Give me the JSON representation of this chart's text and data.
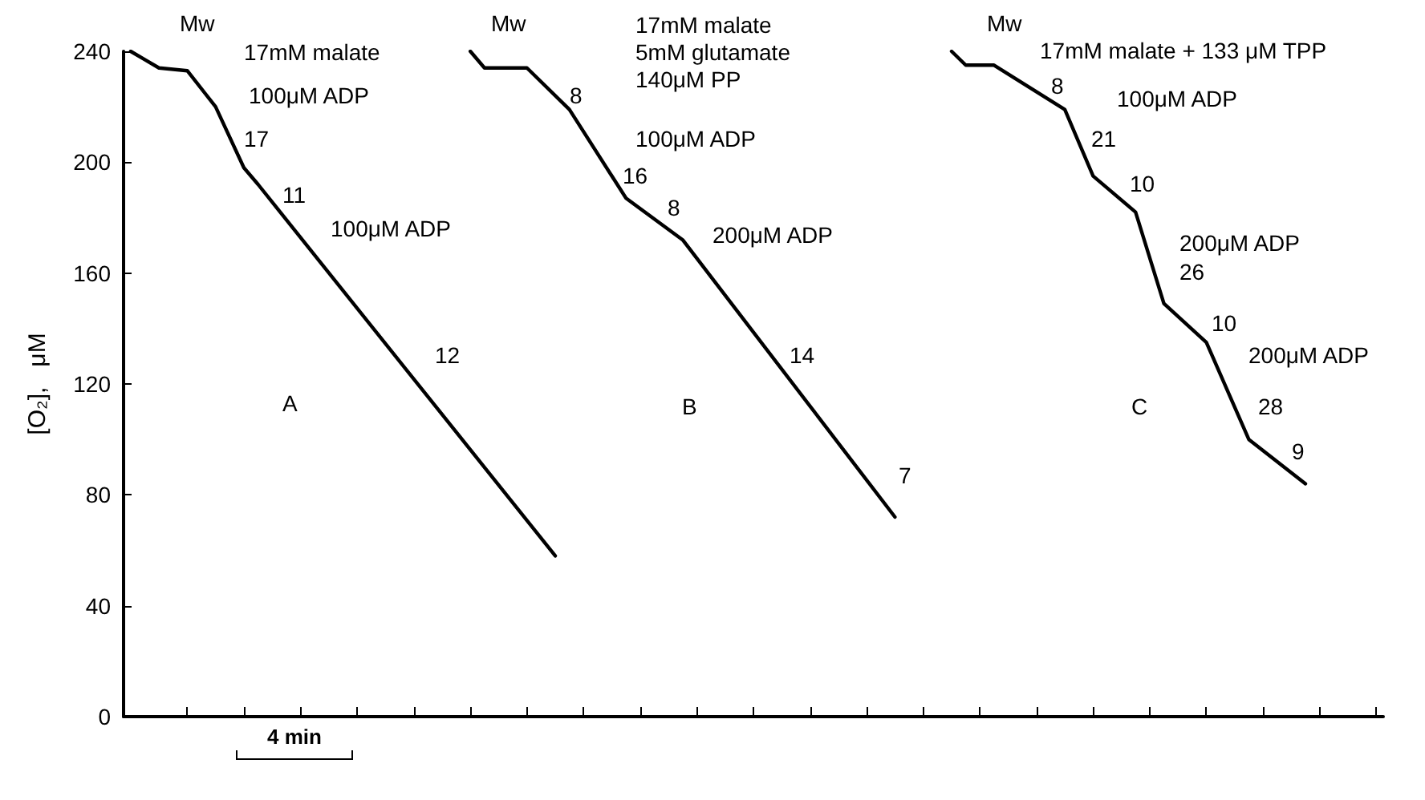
{
  "chart_data": {
    "type": "line",
    "ylabel": "[O₂],   μM",
    "categories": [
      null,
      null,
      null,
      null,
      null,
      null,
      null,
      null,
      null,
      null,
      null,
      null,
      null,
      null,
      null,
      null,
      null,
      null,
      null,
      null,
      null,
      null,
      null,
      null,
      null,
      null,
      null,
      null,
      null,
      null,
      null,
      null,
      null,
      null,
      null,
      null,
      null,
      null,
      null,
      null,
      null,
      null,
      null,
      null,
      null,
      null,
      null,
      null,
      null,
      null,
      null,
      null,
      null,
      null,
      null,
      null,
      null,
      null,
      null,
      null,
      null,
      null,
      null,
      null,
      null,
      null,
      null,
      null,
      null,
      null,
      null,
      null,
      null,
      null,
      null,
      null,
      null,
      null,
      null,
      null,
      null,
      null,
      null,
      null,
      null,
      null,
      null,
      null,
      null
    ],
    "ylim": [
      0,
      240
    ],
    "yticks": [
      0,
      40,
      80,
      120,
      160,
      200,
      240
    ],
    "tick_labels": "y",
    "grid": false,
    "line_style": "solid",
    "series": [
      {
        "color": "#000000",
        "values": [
          240,
          237,
          234,
          null,
          233,
          null,
          220,
          null,
          198,
          192,
          null,
          null,
          null,
          null,
          null,
          null,
          null,
          null,
          null,
          null,
          null,
          null,
          null,
          null,
          null,
          null,
          null,
          null,
          null,
          null,
          58,
          null,
          null,
          null,
          null,
          null,
          null,
          null,
          null,
          null,
          null,
          null,
          null,
          null,
          null,
          null,
          null,
          null,
          null,
          null,
          null,
          null,
          null,
          null,
          null,
          null,
          null,
          null,
          null,
          null,
          null,
          null,
          null,
          null,
          null,
          null,
          null,
          null,
          null,
          null,
          null,
          null,
          null,
          null,
          null,
          null,
          null,
          null,
          null,
          null,
          null,
          null,
          null,
          null,
          null,
          null,
          null,
          null,
          null
        ]
      },
      {
        "color": "#000000",
        "values": [
          null,
          null,
          null,
          null,
          null,
          null,
          null,
          null,
          null,
          null,
          null,
          null,
          null,
          null,
          null,
          null,
          null,
          null,
          null,
          null,
          null,
          null,
          null,
          null,
          240,
          234,
          null,
          null,
          234,
          null,
          null,
          219,
          null,
          null,
          null,
          187,
          null,
          null,
          null,
          172,
          null,
          null,
          null,
          null,
          null,
          null,
          null,
          null,
          null,
          null,
          null,
          92,
          null,
          null,
          72,
          null,
          null,
          null,
          null,
          null,
          null,
          null,
          null,
          null,
          null,
          null,
          null,
          null,
          null,
          null,
          null,
          null,
          null,
          null,
          null,
          null,
          null,
          null,
          null,
          null,
          null,
          null,
          null,
          null,
          null,
          null,
          null,
          null,
          null
        ]
      },
      {
        "color": "#000000",
        "values": [
          null,
          null,
          null,
          null,
          null,
          null,
          null,
          null,
          null,
          null,
          null,
          null,
          null,
          null,
          null,
          null,
          null,
          null,
          null,
          null,
          null,
          null,
          null,
          null,
          null,
          null,
          null,
          null,
          null,
          null,
          null,
          null,
          null,
          null,
          null,
          null,
          null,
          null,
          null,
          null,
          null,
          null,
          null,
          null,
          null,
          null,
          null,
          null,
          null,
          null,
          null,
          null,
          null,
          null,
          null,
          null,
          null,
          null,
          240,
          235,
          null,
          235,
          null,
          null,
          null,
          null,
          219,
          null,
          195,
          null,
          null,
          182,
          null,
          149,
          null,
          null,
          135,
          null,
          null,
          100,
          null,
          null,
          null,
          84,
          null,
          null,
          null,
          null,
          null
        ]
      }
    ],
    "annotations": [
      "Mw",
      "17mM malate",
      "100μM ADP",
      "17",
      "11",
      "100μM ADP",
      "12",
      "A",
      "Mw",
      "17mM malate\n5mM glutamate\n140μM PP",
      "8",
      "100μM ADP",
      "16",
      "8",
      "200μM ADP",
      "14",
      "B",
      "7",
      "Mw",
      "17mM malate + 133 μM TPP",
      "8",
      "100μM ADP",
      "21",
      "10",
      "200μM ADP",
      "26",
      "10",
      "200μM ADP",
      "28",
      "9",
      "C",
      "4 min"
    ]
  }
}
